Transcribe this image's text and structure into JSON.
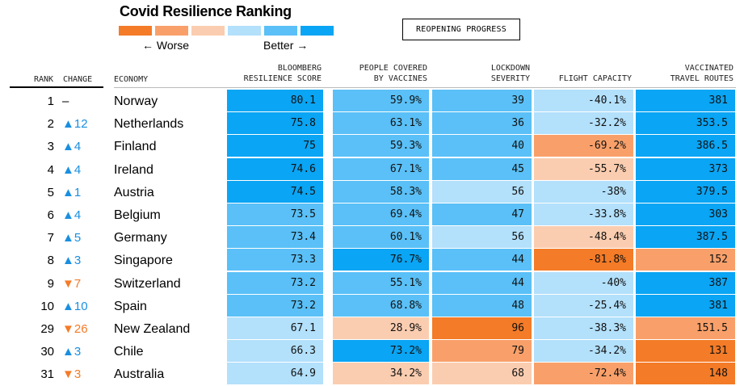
{
  "title": "Covid Resilience Ranking",
  "legend": {
    "worse_label": "← Worse",
    "better_label": "Better →",
    "colors": [
      "#f47b27",
      "#f9a06a",
      "#fbcdb0",
      "#b3e0fb",
      "#5ac0f7",
      "#0aa5f4"
    ]
  },
  "button_label": "REOPENING PROGRESS",
  "headers": {
    "rank": "RANK",
    "change": "CHANGE",
    "economy": "ECONOMY",
    "score": [
      "BLOOMBERG",
      "RESILIENCE SCORE"
    ],
    "vaccines": [
      "PEOPLE COVERED",
      "BY VACCINES"
    ],
    "lockdown": [
      "LOCKDOWN",
      "SEVERITY"
    ],
    "flight": [
      "FLIGHT CAPACITY"
    ],
    "routes": [
      "VACCINATED",
      "TRAVEL ROUTES"
    ]
  },
  "chart_data": {
    "type": "table",
    "title": "Covid Resilience Ranking",
    "columns": [
      "Rank",
      "Change",
      "Economy",
      "Bloomberg Resilience Score",
      "People Covered by Vaccines",
      "Lockdown Severity",
      "Flight Capacity",
      "Vaccinated Travel Routes"
    ],
    "rows": [
      {
        "rank": "1",
        "change": "–",
        "dir": "none",
        "economy": "Norway",
        "score": "80.1",
        "vaccines": "59.9%",
        "lockdown": "39",
        "flight": "-40.1%",
        "routes": "381",
        "c": [
          "#0aa5f4",
          "#5ac0f7",
          "#5ac0f7",
          "#b3e0fb",
          "#0aa5f4"
        ]
      },
      {
        "rank": "2",
        "change": "▲12",
        "dir": "up",
        "economy": "Netherlands",
        "score": "75.8",
        "vaccines": "63.1%",
        "lockdown": "36",
        "flight": "-32.2%",
        "routes": "353.5",
        "c": [
          "#0aa5f4",
          "#5ac0f7",
          "#5ac0f7",
          "#b3e0fb",
          "#0aa5f4"
        ]
      },
      {
        "rank": "3",
        "change": "▲4",
        "dir": "up",
        "economy": "Finland",
        "score": "75",
        "vaccines": "59.3%",
        "lockdown": "40",
        "flight": "-69.2%",
        "routes": "386.5",
        "c": [
          "#0aa5f4",
          "#5ac0f7",
          "#5ac0f7",
          "#f9a06a",
          "#0aa5f4"
        ]
      },
      {
        "rank": "4",
        "change": "▲4",
        "dir": "up",
        "economy": "Ireland",
        "score": "74.6",
        "vaccines": "67.1%",
        "lockdown": "45",
        "flight": "-55.7%",
        "routes": "373",
        "c": [
          "#0aa5f4",
          "#5ac0f7",
          "#5ac0f7",
          "#fbcdb0",
          "#0aa5f4"
        ]
      },
      {
        "rank": "5",
        "change": "▲1",
        "dir": "up",
        "economy": "Austria",
        "score": "74.5",
        "vaccines": "58.3%",
        "lockdown": "56",
        "flight": "-38%",
        "routes": "379.5",
        "c": [
          "#0aa5f4",
          "#5ac0f7",
          "#b3e0fb",
          "#b3e0fb",
          "#0aa5f4"
        ]
      },
      {
        "rank": "6",
        "change": "▲4",
        "dir": "up",
        "economy": "Belgium",
        "score": "73.5",
        "vaccines": "69.4%",
        "lockdown": "47",
        "flight": "-33.8%",
        "routes": "303",
        "c": [
          "#5ac0f7",
          "#5ac0f7",
          "#5ac0f7",
          "#b3e0fb",
          "#0aa5f4"
        ]
      },
      {
        "rank": "7",
        "change": "▲5",
        "dir": "up",
        "economy": "Germany",
        "score": "73.4",
        "vaccines": "60.1%",
        "lockdown": "56",
        "flight": "-48.4%",
        "routes": "387.5",
        "c": [
          "#5ac0f7",
          "#5ac0f7",
          "#b3e0fb",
          "#fbcdb0",
          "#0aa5f4"
        ]
      },
      {
        "rank": "8",
        "change": "▲3",
        "dir": "up",
        "economy": "Singapore",
        "score": "73.3",
        "vaccines": "76.7%",
        "lockdown": "44",
        "flight": "-81.8%",
        "routes": "152",
        "c": [
          "#5ac0f7",
          "#0aa5f4",
          "#5ac0f7",
          "#f47b27",
          "#f9a06a"
        ]
      },
      {
        "rank": "9",
        "change": "▼7",
        "dir": "down",
        "economy": "Switzerland",
        "score": "73.2",
        "vaccines": "55.1%",
        "lockdown": "44",
        "flight": "-40%",
        "routes": "387",
        "c": [
          "#5ac0f7",
          "#5ac0f7",
          "#5ac0f7",
          "#b3e0fb",
          "#0aa5f4"
        ]
      },
      {
        "rank": "10",
        "change": "▲10",
        "dir": "up",
        "economy": "Spain",
        "score": "73.2",
        "vaccines": "68.8%",
        "lockdown": "48",
        "flight": "-25.4%",
        "routes": "381",
        "c": [
          "#5ac0f7",
          "#5ac0f7",
          "#5ac0f7",
          "#b3e0fb",
          "#0aa5f4"
        ]
      },
      {
        "rank": "29",
        "change": "▼26",
        "dir": "down",
        "economy": "New Zealand",
        "score": "67.1",
        "vaccines": "28.9%",
        "lockdown": "96",
        "flight": "-38.3%",
        "routes": "151.5",
        "c": [
          "#b3e0fb",
          "#fbcdb0",
          "#f47b27",
          "#b3e0fb",
          "#f9a06a"
        ]
      },
      {
        "rank": "30",
        "change": "▲3",
        "dir": "up",
        "economy": "Chile",
        "score": "66.3",
        "vaccines": "73.2%",
        "lockdown": "79",
        "flight": "-34.2%",
        "routes": "131",
        "c": [
          "#b3e0fb",
          "#0aa5f4",
          "#f9a06a",
          "#b3e0fb",
          "#f47b27"
        ]
      },
      {
        "rank": "31",
        "change": "▼3",
        "dir": "down",
        "economy": "Australia",
        "score": "64.9",
        "vaccines": "34.2%",
        "lockdown": "68",
        "flight": "-72.4%",
        "routes": "148",
        "c": [
          "#b3e0fb",
          "#fbcdb0",
          "#fbcdb0",
          "#f9a06a",
          "#f47b27"
        ]
      }
    ]
  }
}
